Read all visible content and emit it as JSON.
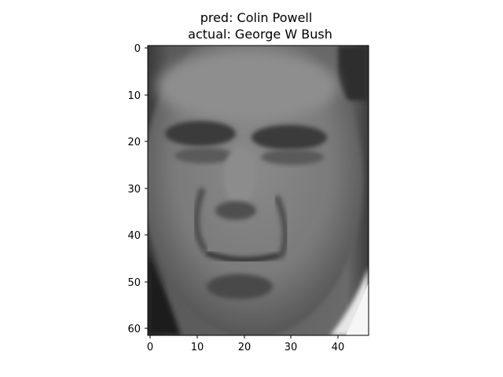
{
  "figure": {
    "title_line1": "pred: Colin Powell",
    "title_line2": "actual: George W Bush"
  },
  "image": {
    "content": "grayscale face photograph",
    "colormap": "gray"
  },
  "axes": {
    "x_ticks": [
      "0",
      "10",
      "20",
      "30",
      "40"
    ],
    "y_ticks": [
      "0",
      "10",
      "20",
      "30",
      "40",
      "50",
      "60"
    ],
    "x_range": [
      -0.5,
      46.5
    ],
    "y_range": [
      -0.5,
      61.5
    ]
  }
}
